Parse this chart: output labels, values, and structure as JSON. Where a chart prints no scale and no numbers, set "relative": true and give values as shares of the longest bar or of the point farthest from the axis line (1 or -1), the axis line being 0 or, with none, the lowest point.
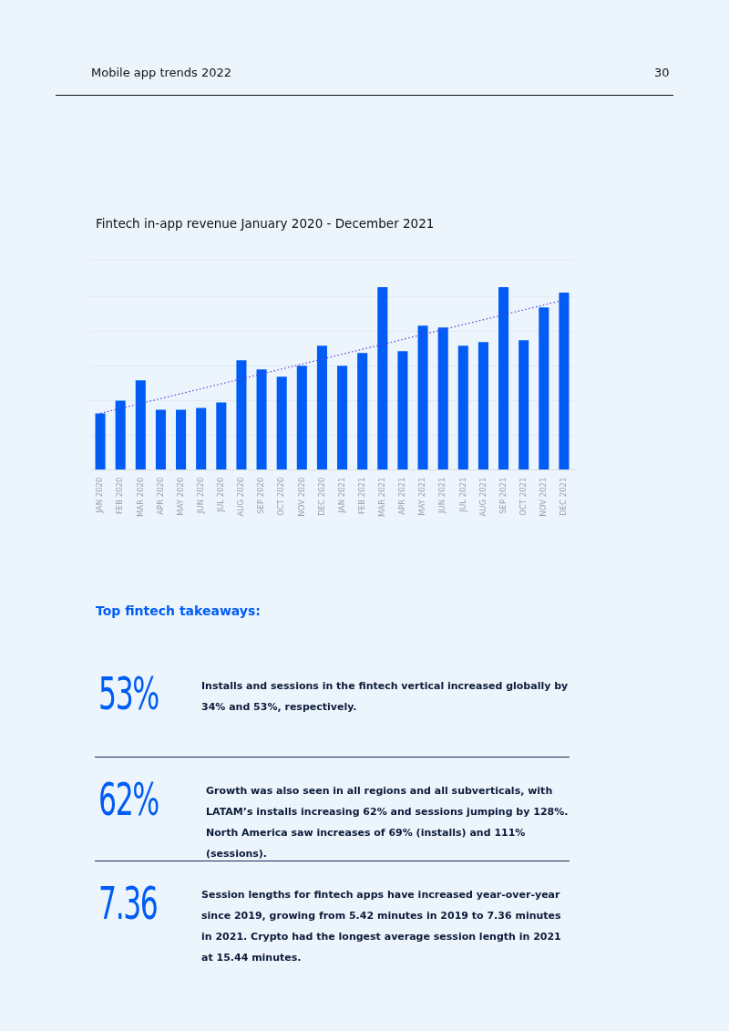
{
  "chart_data": {
    "type": "bar",
    "title": "Fintech in-app revenue January 2020 - December 2021",
    "categories": [
      "JAN 2020",
      "FEB 2020",
      "MAR 2020",
      "APR 2020",
      "MAY 2020",
      "JUN 2020",
      "JUL 2020",
      "AUG 2020",
      "SEP 2020",
      "OCT 2020",
      "NOV 2020",
      "DEC 2020",
      "JAN 2021",
      "FEB 2021",
      "MAR 2021",
      "APR 2021",
      "MAY 2021",
      "JUN 2021",
      "JUL 2021",
      "AUG 2021",
      "SEP 2021",
      "OCT 2021",
      "NOV 2021",
      "DEC 2021"
    ],
    "relative": true,
    "series": [
      {
        "color": "#005cf5",
        "values": [
          0.31,
          0.38,
          0.49,
          0.33,
          0.33,
          0.34,
          0.37,
          0.6,
          0.55,
          0.51,
          0.57,
          0.68,
          0.57,
          0.64,
          1,
          0.65,
          0.79,
          0.78,
          0.68,
          0.7,
          1,
          0.71,
          0.89,
          0.97
        ]
      },
      {
        "type": "line",
        "color": "#5a3ee0",
        "line_style": "dotted",
        "x": [
          "JAN 2020",
          "DEC 2021"
        ],
        "values": [
          0.31,
          0.93
        ]
      }
    ],
    "grid": "y",
    "legend": false,
    "annotations": [
      "Mobile app trends 2022",
      "30",
      "Top fintech takeaways:",
      "53%",
      "Installs and sessions in the fintech vertical increased globally by 34% and 53%, respectively.",
      "62%",
      "Growth was also seen in all regions and all subverticals, with LATAM’s installs increasing 62% and sessions jumping by 128%. North America saw increases of 69% (installs) and 111% (sessions).",
      "7.36",
      "Session lengths for fintech apps have increased year-over-year since 2019, growing from 5.42 minutes in 2019 to 7.36 minutes in 2021. Crypto had the longest average session length in 2021 at 15.44 minutes."
    ]
  }
}
